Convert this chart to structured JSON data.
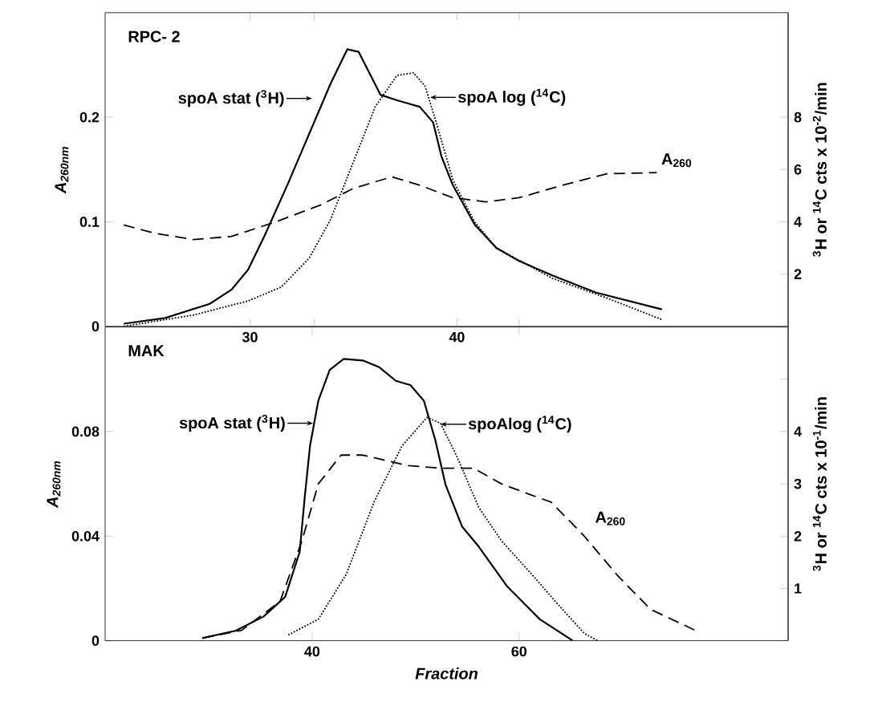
{
  "chart_data": [
    {
      "type": "line",
      "title": "RPC- 2",
      "ylabel": "A$_{260nm}$",
      "y2label": "$^{3}$H or $^{14}$C cts x 10$^{-2}$/min",
      "xlim": [
        23,
        56
      ],
      "xticks": [
        30,
        {
          "value": 33.1,
          "label": null
        },
        40,
        {
          "value": 43.0,
          "label": null
        }
      ],
      "ylim": [
        0,
        0.3
      ],
      "yticks": [
        0,
        0.1,
        0.2
      ],
      "y2lim": [
        0,
        12
      ],
      "y2ticks": [
        2,
        4,
        6,
        8
      ],
      "grid": false,
      "marker": "none",
      "annotations": [
        {
          "text": "spoA stat ($^{3}$H)",
          "x": 33.0,
          "y": 0.218
        },
        {
          "text": "spoA log ($^{14}$C)",
          "x": 38.7,
          "y": 0.219
        },
        {
          "text": "A$_{260}$",
          "x": 49.6,
          "y": 0.147
        }
      ],
      "series": [
        {
          "color": "#000000",
          "line_style": "solid",
          "axis": "y2",
          "x": [
            23.9,
            25.9,
            28.05,
            29.1,
            29.9,
            30.7,
            31.8,
            32.85,
            33.9,
            34.7,
            35.25,
            36.3,
            37.1,
            38.2,
            38.85,
            39.25,
            39.8,
            40.85,
            41.9,
            43.0,
            44.6,
            46.7,
            49.9
          ],
          "values": [
            0.1,
            0.32,
            0.86,
            1.4,
            2.16,
            3.46,
            5.4,
            7.35,
            9.3,
            10.6,
            10.5,
            8.86,
            8.65,
            8.4,
            7.8,
            6.5,
            5.4,
            3.9,
            3.0,
            2.5,
            1.95,
            1.3,
            0.65
          ]
        },
        {
          "color": "#000000",
          "line_style": "dotted",
          "axis": "y2",
          "x": [
            23.9,
            27.25,
            29.9,
            31.5,
            32.85,
            33.9,
            35.0,
            36.05,
            37.1,
            37.9,
            38.45,
            39.0,
            39.8,
            40.85,
            41.9,
            44.6,
            47.25,
            49.9
          ],
          "values": [
            0,
            0.43,
            0.97,
            1.5,
            2.6,
            4.1,
            6.3,
            8.4,
            9.6,
            9.7,
            9.2,
            7.8,
            5.6,
            4.0,
            3.0,
            1.84,
            1.08,
            0.26
          ]
        },
        {
          "color": "#000000",
          "line_style": "dashed",
          "axis": "y",
          "x": [
            23.9,
            25.4,
            27.25,
            29.1,
            31.25,
            33.4,
            35.0,
            36.85,
            38.2,
            39.8,
            41.4,
            43.0,
            45.1,
            47.25,
            49.65
          ],
          "values": [
            0.097,
            0.089,
            0.083,
            0.086,
            0.1,
            0.116,
            0.132,
            0.143,
            0.135,
            0.123,
            0.119,
            0.123,
            0.135,
            0.146,
            0.147
          ]
        }
      ]
    },
    {
      "type": "line",
      "title": "MAK",
      "xlabel": "Fraction",
      "ylabel": "A$_{260nm}$",
      "y2label": "$^{3}$H or $^{14}$C cts x 10$^{-1}$/min",
      "xlim": [
        20,
        86
      ],
      "xticks": [
        40,
        60
      ],
      "ylim": [
        0,
        0.12
      ],
      "yticks": [
        0,
        0.04,
        0.08
      ],
      "y2lim": [
        0,
        6
      ],
      "y2ticks": [
        1,
        2,
        3,
        4,
        {
          "value": 5,
          "label": null
        }
      ],
      "grid": false,
      "marker": "none",
      "annotations": [
        {
          "text": "spoA stat ($^{3}$H)",
          "x": 40.1,
          "y": 0.0832
        },
        {
          "text": "spoAlog ($^{14}$C)",
          "x": 52.4,
          "y": 0.0828
        },
        {
          "text": "A$_{260}$",
          "x": 66.8,
          "y": 0.042
        }
      ],
      "series": [
        {
          "color": "#000000",
          "line_style": "solid",
          "axis": "y2",
          "x": [
            29.4,
            32.6,
            35.3,
            37.4,
            38.8,
            39.3,
            39.8,
            40.6,
            41.7,
            43.05,
            44.9,
            46.5,
            48.1,
            49.5,
            50.8,
            51.9,
            52.9,
            54.5,
            56.1,
            58.8,
            62.0,
            65.2
          ],
          "values": [
            0.05,
            0.19,
            0.46,
            0.84,
            1.7,
            2.77,
            3.73,
            4.59,
            5.18,
            5.39,
            5.36,
            5.23,
            4.97,
            4.89,
            4.59,
            3.84,
            2.98,
            2.18,
            1.8,
            1.05,
            0.41,
            0
          ]
        },
        {
          "color": "#000000",
          "line_style": "dotted",
          "axis": "y2",
          "x": [
            37.7,
            40.6,
            43.3,
            46.0,
            48.7,
            51.1,
            52.4,
            54.0,
            56.1,
            58.3,
            61.0,
            63.6,
            66.3,
            67.6
          ],
          "values": [
            0.11,
            0.41,
            1.27,
            2.66,
            3.73,
            4.27,
            4.16,
            3.52,
            2.55,
            1.91,
            1.32,
            0.73,
            0.14,
            0
          ]
        },
        {
          "color": "#000000",
          "line_style": "dashed",
          "axis": "y",
          "x": [
            29.4,
            33.2,
            36.9,
            39.0,
            40.6,
            42.8,
            44.9,
            47.1,
            49.2,
            52.4,
            55.6,
            58.3,
            61.0,
            63.1,
            66.3,
            69.5,
            72.7,
            77.0
          ],
          "values": [
            0.001,
            0.004,
            0.015,
            0.038,
            0.06,
            0.071,
            0.071,
            0.069,
            0.067,
            0.066,
            0.066,
            0.06,
            0.056,
            0.053,
            0.04,
            0.025,
            0.012,
            0.004
          ]
        }
      ]
    }
  ]
}
